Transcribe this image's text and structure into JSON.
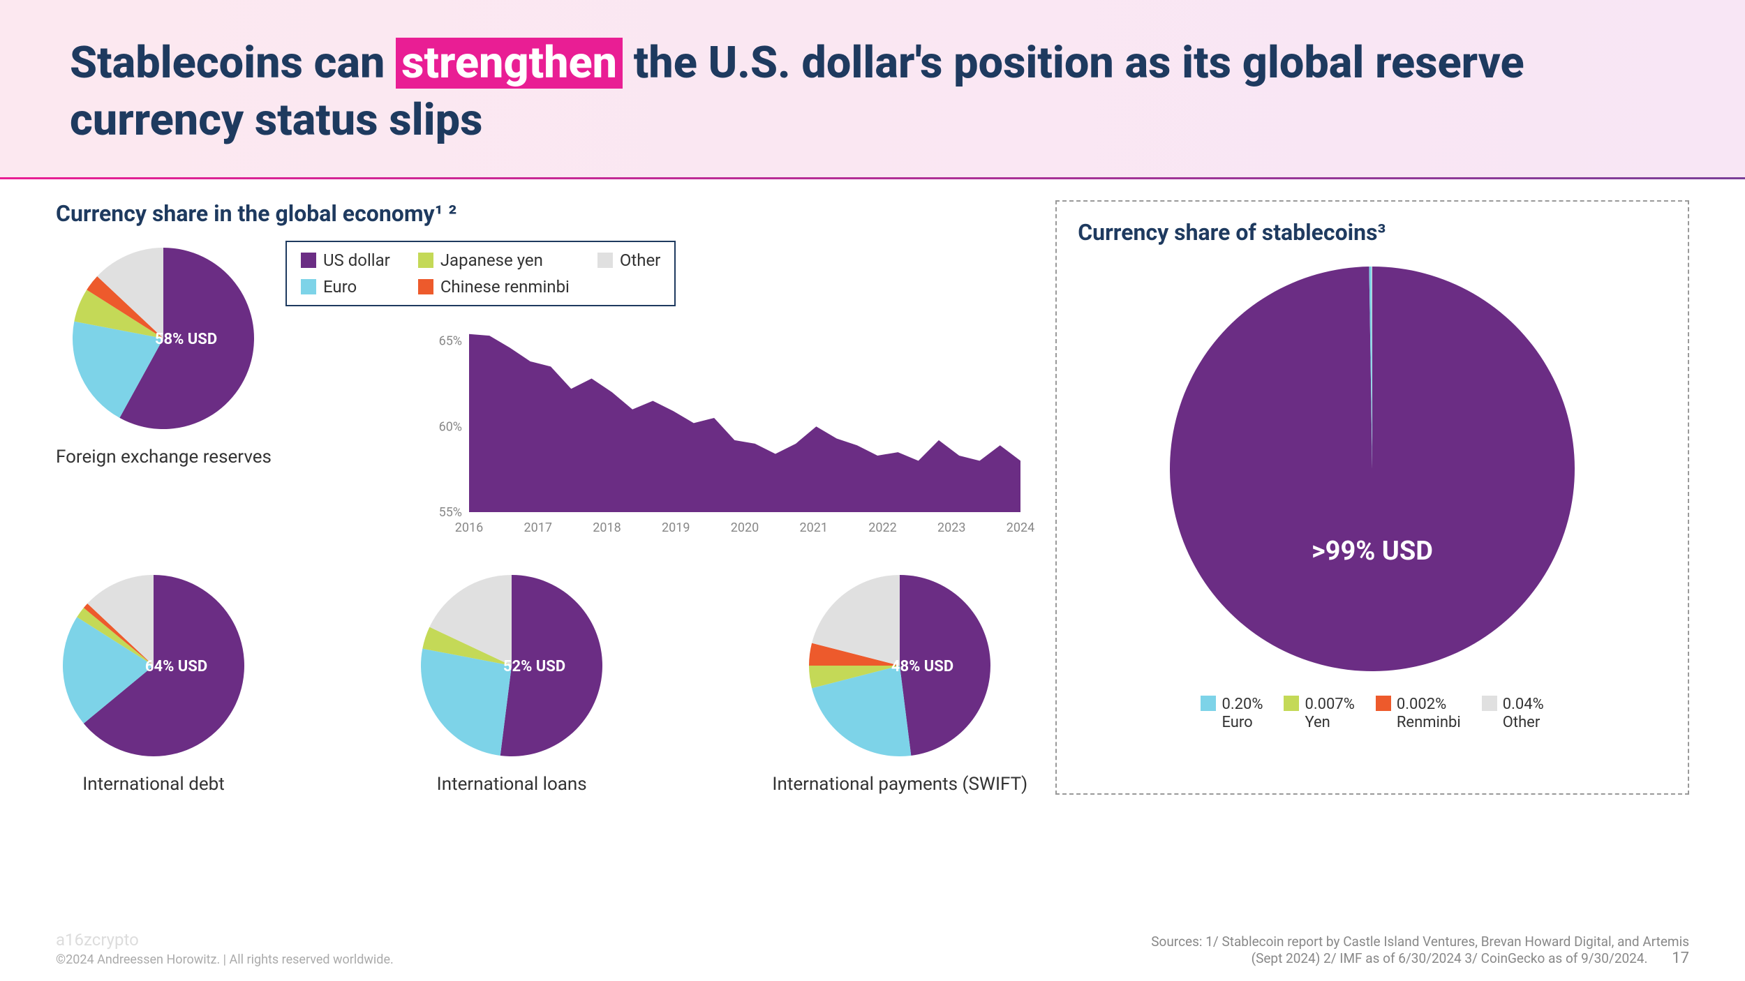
{
  "header": {
    "title_pre": "Stablecoins can ",
    "title_highlight": "strengthen",
    "title_post": " the U.S. dollar's position as its global reserve currency status slips"
  },
  "colors": {
    "usd": "#6b2d84",
    "euro": "#7dd3e8",
    "yen": "#c4d957",
    "renminbi": "#ed5a2c",
    "other": "#e0e0e0",
    "title_text": "#1e3a5f",
    "highlight_bg": "#e91e94",
    "axis_text": "#888888"
  },
  "left": {
    "title": "Currency share in the global economy¹ ²",
    "legend": [
      {
        "label": "US dollar",
        "color": "#6b2d84"
      },
      {
        "label": "Japanese yen",
        "color": "#c4d957"
      },
      {
        "label": "Other",
        "color": "#e0e0e0"
      },
      {
        "label": "Euro",
        "color": "#7dd3e8"
      },
      {
        "label": "Chinese renminbi",
        "color": "#ed5a2c"
      }
    ],
    "pie1": {
      "label": "Foreign exchange reserves",
      "center": "58% USD",
      "slices": [
        {
          "color": "#6b2d84",
          "value": 58
        },
        {
          "color": "#7dd3e8",
          "value": 20
        },
        {
          "color": "#c4d957",
          "value": 6
        },
        {
          "color": "#ed5a2c",
          "value": 3
        },
        {
          "color": "#e0e0e0",
          "value": 13
        }
      ]
    },
    "area_chart": {
      "y_ticks": [
        "65%",
        "60%",
        "55%"
      ],
      "y_values": [
        65,
        60,
        55
      ],
      "x_ticks": [
        "2016",
        "2017",
        "2018",
        "2019",
        "2020",
        "2021",
        "2022",
        "2023",
        "2024"
      ],
      "series": [
        65.4,
        65.3,
        64.6,
        63.8,
        63.5,
        62.2,
        62.8,
        62.0,
        61.0,
        61.5,
        60.9,
        60.2,
        60.5,
        59.2,
        59.0,
        58.4,
        59.0,
        60.0,
        59.3,
        58.9,
        58.3,
        58.5,
        58.0,
        59.2,
        58.3,
        58.0,
        58.9,
        58.0
      ],
      "color": "#6b2d84",
      "ylim": [
        55,
        66
      ]
    },
    "pie2": {
      "label": "International debt",
      "center": "64% USD",
      "slices": [
        {
          "color": "#6b2d84",
          "value": 64
        },
        {
          "color": "#7dd3e8",
          "value": 20
        },
        {
          "color": "#c4d957",
          "value": 2
        },
        {
          "color": "#ed5a2c",
          "value": 1
        },
        {
          "color": "#e0e0e0",
          "value": 13
        }
      ]
    },
    "pie3": {
      "label": "International loans",
      "center": "52% USD",
      "slices": [
        {
          "color": "#6b2d84",
          "value": 52
        },
        {
          "color": "#7dd3e8",
          "value": 26
        },
        {
          "color": "#c4d957",
          "value": 4
        },
        {
          "color": "#ed5a2c",
          "value": 0
        },
        {
          "color": "#e0e0e0",
          "value": 18
        }
      ]
    },
    "pie4": {
      "label": "International payments (SWIFT)",
      "center": "48% USD",
      "slices": [
        {
          "color": "#6b2d84",
          "value": 48
        },
        {
          "color": "#7dd3e8",
          "value": 23
        },
        {
          "color": "#c4d957",
          "value": 4
        },
        {
          "color": "#ed5a2c",
          "value": 4
        },
        {
          "color": "#e0e0e0",
          "value": 21
        }
      ]
    }
  },
  "right": {
    "title": "Currency share of stablecoins³",
    "big_pie": {
      "center": ">99% USD",
      "slices": [
        {
          "color": "#6b2d84",
          "value": 99.75
        },
        {
          "color": "#7dd3e8",
          "value": 0.2
        },
        {
          "color": "#c4d957",
          "value": 0.007
        },
        {
          "color": "#ed5a2c",
          "value": 0.002
        },
        {
          "color": "#e0e0e0",
          "value": 0.04
        }
      ]
    },
    "legend": [
      {
        "pct": "0.20%",
        "label": "Euro",
        "color": "#7dd3e8"
      },
      {
        "pct": "0.007%",
        "label": "Yen",
        "color": "#c4d957"
      },
      {
        "pct": "0.002%",
        "label": "Renminbi",
        "color": "#ed5a2c"
      },
      {
        "pct": "0.04%",
        "label": "Other",
        "color": "#e0e0e0"
      }
    ]
  },
  "footer": {
    "logo": "a16zcrypto",
    "copyright": "©2024 Andreessen Horowitz. | All rights reserved worldwide.",
    "sources": "Sources: 1/ Stablecoin report by Castle Island Ventures, Brevan Howard Digital, and Artemis (Sept 2024) 2/ IMF as of 6/30/2024 3/ CoinGecko as of 9/30/2024.",
    "page": "17"
  }
}
